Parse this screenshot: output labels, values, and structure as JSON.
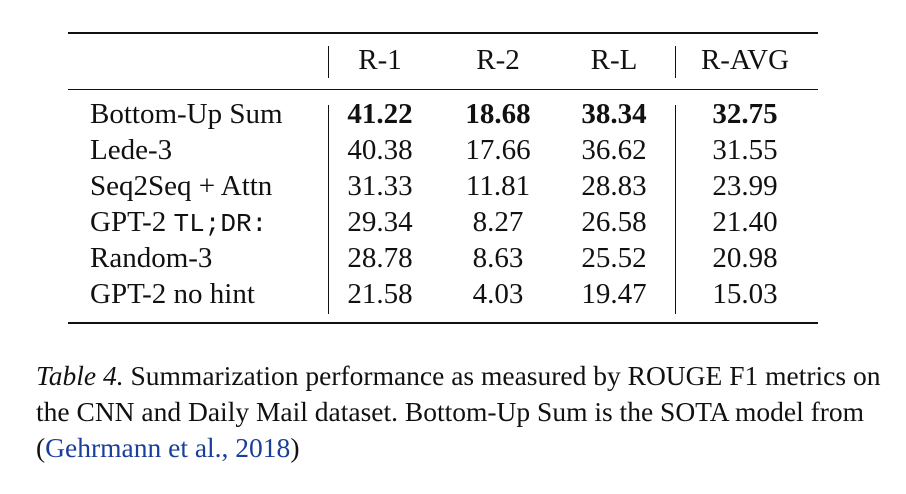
{
  "table": {
    "columns": [
      "",
      "R-1",
      "R-2",
      "R-L",
      "R-AVG"
    ],
    "rows": [
      {
        "model": "Bottom-Up Sum",
        "r1": "41.22",
        "r2": "18.68",
        "rl": "38.34",
        "ravg": "32.75",
        "bold": true
      },
      {
        "model": "Lede-3",
        "r1": "40.38",
        "r2": "17.66",
        "rl": "36.62",
        "ravg": "31.55"
      },
      {
        "model": "Seq2Seq + Attn",
        "r1": "31.33",
        "r2": "11.81",
        "rl": "28.83",
        "ravg": "23.99"
      },
      {
        "model": "GPT-2",
        "model_suffix_mono": "TL;DR:",
        "r1": "29.34",
        "r2": "8.27",
        "rl": "26.58",
        "ravg": "21.40"
      },
      {
        "model": "Random-3",
        "r1": "28.78",
        "r2": "8.63",
        "rl": "25.52",
        "ravg": "20.98"
      },
      {
        "model": "GPT-2 no hint",
        "r1": "21.58",
        "r2": "4.03",
        "rl": "19.47",
        "ravg": "15.03"
      }
    ]
  },
  "caption": {
    "label": "Table 4.",
    "text": "Summarization performance as measured by ROUGE F1 metrics on the CNN and Daily Mail dataset. Bottom-Up Sum is the SOTA model from",
    "open_paren": "(",
    "citation": "Gehrmann et al., 2018",
    "close_paren": ")"
  },
  "colors": {
    "text": "#111111",
    "citation": "#1a3f9a"
  }
}
